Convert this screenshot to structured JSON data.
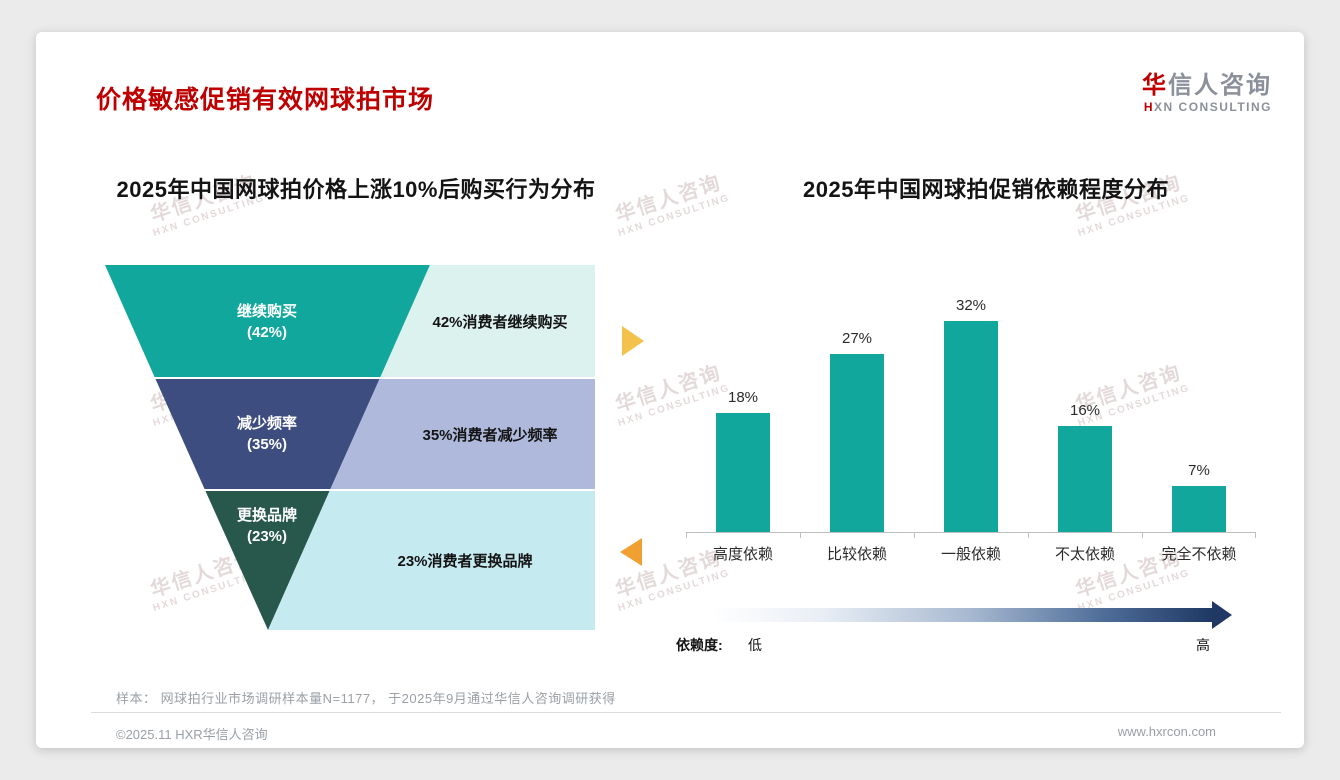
{
  "page": {
    "title": "价格敏感促销有效网球拍市场",
    "logo": {
      "zh_first": "华",
      "zh_rest": "信人咨询",
      "en_first": "H",
      "en_rest": "XN CONSULTING"
    },
    "watermark": {
      "zh": "华信人咨询",
      "en": "HXN CONSULTING"
    },
    "footer": {
      "sample_note": "样本： 网球拍行业市场调研样本量N=1177， 于2025年9月通过华信人咨询调研获得",
      "copyright": "©2025.11 HXR华信人咨询",
      "website": "www.hxrcon.com"
    },
    "accent_red": "#C00000"
  },
  "chart_data": [
    {
      "type": "funnel",
      "title": "2025年中国网球拍价格上涨10%后购买行为分布",
      "stages": [
        {
          "label": "继续购买",
          "value": 42,
          "value_label": "(42%)",
          "annotation": "42%消费者继续购买",
          "color": "#12A79C",
          "annotation_bg": "#DCF2EF"
        },
        {
          "label": "减少频率",
          "value": 35,
          "value_label": "(35%)",
          "annotation": "35%消费者减少频率",
          "color": "#3E4D80",
          "annotation_bg": "#AEB9DB"
        },
        {
          "label": "更换品牌",
          "value": 23,
          "value_label": "(23%)",
          "annotation": "23%消费者更换品牌",
          "color": "#27584B",
          "annotation_bg": "#C5EAF0"
        }
      ]
    },
    {
      "type": "bar",
      "title": "2025年中国网球拍促销依赖程度分布",
      "categories": [
        "高度依赖",
        "比较依赖",
        "一般依赖",
        "不太依赖",
        "完全不依赖"
      ],
      "values": [
        18,
        27,
        32,
        16,
        7
      ],
      "value_labels": [
        "18%",
        "27%",
        "32%",
        "16%",
        "7%"
      ],
      "bar_color": "#12A79C",
      "ylim": [
        0,
        35
      ],
      "legend_position": "none",
      "grid": false,
      "axis_legend": {
        "label": "依赖度:",
        "low": "低",
        "high": "高"
      },
      "gradient": [
        "#FFFFFF",
        "#1F3864"
      ]
    }
  ]
}
